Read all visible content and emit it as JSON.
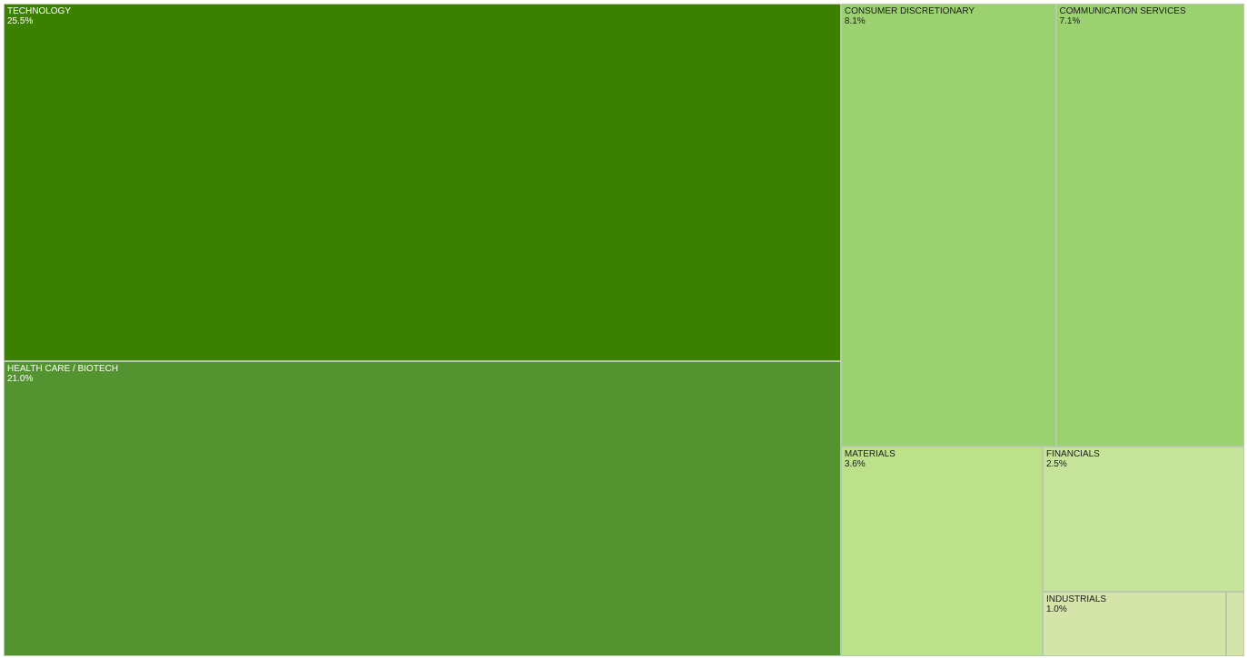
{
  "chart_data": {
    "type": "treemap",
    "title": "",
    "unit": "%",
    "items": [
      {
        "name": "TECHNOLOGY",
        "value": 25.5,
        "label": "25.5%",
        "color": "#3c8000",
        "text_color": "#ffffff"
      },
      {
        "name": "HEALTH CARE / BIOTECH",
        "value": 21.0,
        "label": "21.0%",
        "color": "#549430",
        "text_color": "#ffffff"
      },
      {
        "name": "CONSUMER DISCRETIONARY",
        "value": 8.1,
        "label": "8.1%",
        "color": "#9bd26f",
        "text_color": "#1a1a1a"
      },
      {
        "name": "COMMUNICATION SERVICES",
        "value": 7.1,
        "label": "7.1%",
        "color": "#9bd26f",
        "text_color": "#1a1a1a"
      },
      {
        "name": "MATERIALS",
        "value": 3.6,
        "label": "3.6%",
        "color": "#bde08a",
        "text_color": "#1a1a1a"
      },
      {
        "name": "FINANCIALS",
        "value": 2.5,
        "label": "2.5%",
        "color": "#c5e49a",
        "text_color": "#1a1a1a"
      },
      {
        "name": "INDUSTRIALS",
        "value": 1.0,
        "label": "1.0%",
        "color": "#d5e5aa",
        "text_color": "#1a1a1a"
      },
      {
        "name": "",
        "value": 0.1,
        "label": "",
        "color": "#d5e5aa",
        "text_color": "#1a1a1a"
      }
    ]
  }
}
